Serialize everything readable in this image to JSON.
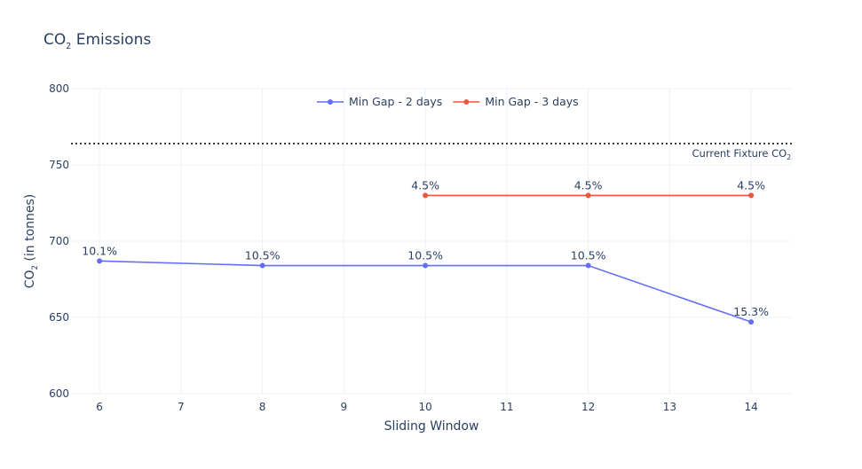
{
  "chart_data": {
    "type": "line",
    "title": {
      "main": "CO",
      "sub": "2",
      "rest": " Emissions"
    },
    "xlabel": "Sliding Window",
    "ylabel": {
      "main": "CO",
      "sub": "2",
      "rest": " (in tonnes)"
    },
    "xlim": [
      5.65,
      14.5
    ],
    "ylim": [
      600,
      800
    ],
    "x_ticks": [
      6,
      7,
      8,
      9,
      10,
      11,
      12,
      13,
      14
    ],
    "y_ticks": [
      600,
      650,
      700,
      750,
      800
    ],
    "grid": true,
    "legend_position": "top-center",
    "series": [
      {
        "name": "Min Gap - 2 days",
        "color": "#636efa",
        "x": [
          6,
          8,
          10,
          12,
          14
        ],
        "y": [
          687,
          684,
          684,
          684,
          647
        ],
        "labels": [
          "10.1%",
          "10.5%",
          "10.5%",
          "10.5%",
          "15.3%"
        ]
      },
      {
        "name": "Min Gap - 3 days",
        "color": "#ef553b",
        "x": [
          10,
          12,
          14
        ],
        "y": [
          730,
          730,
          730
        ],
        "labels": [
          "4.5%",
          "4.5%",
          "4.5%"
        ]
      }
    ],
    "reference_line": {
      "y": 764,
      "style": "dotted",
      "color": "#111111",
      "label": {
        "main": "Current Fixture CO",
        "sub": "2"
      }
    }
  }
}
